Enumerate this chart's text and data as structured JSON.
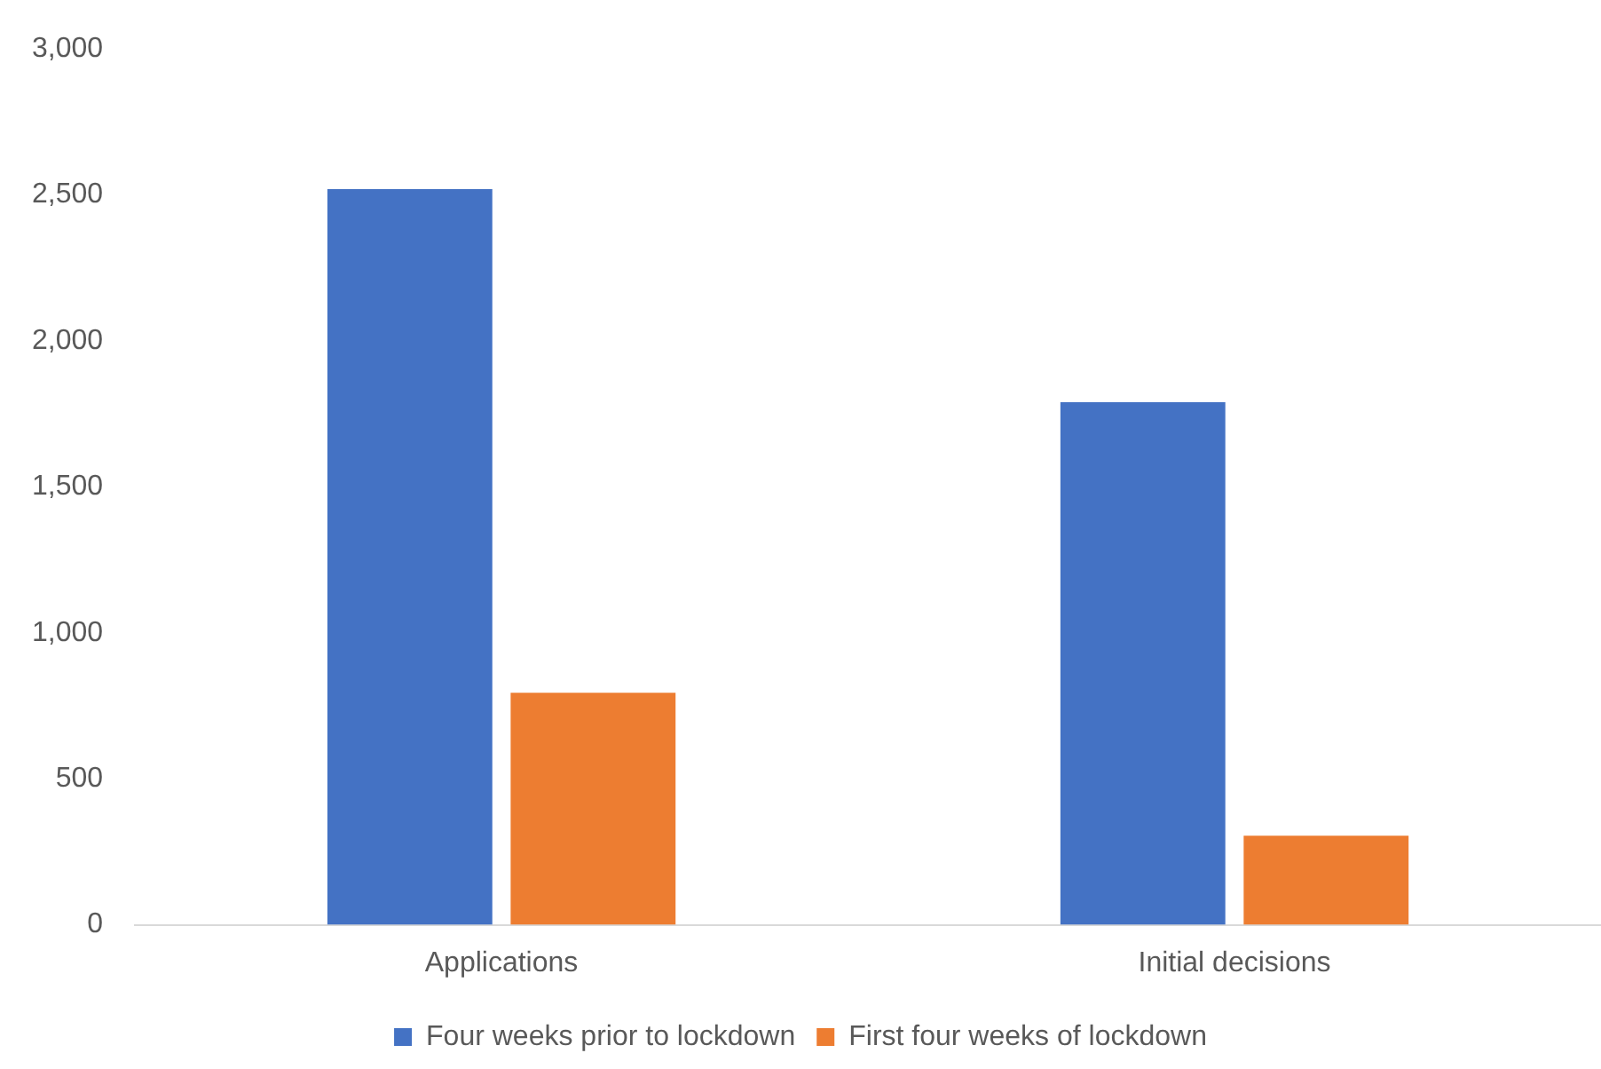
{
  "chart_data": {
    "type": "bar",
    "categories": [
      "Applications",
      "Initial decisions"
    ],
    "series": [
      {
        "name": "Four weeks prior to lockdown",
        "color": "#4472c4",
        "values": [
          2520,
          1790
        ]
      },
      {
        "name": "First four weeks of lockdown",
        "color": "#ed7d31",
        "values": [
          795,
          305
        ]
      }
    ],
    "ylim": [
      0,
      3000
    ],
    "yticks": [
      0,
      500,
      {
        "value": 1000,
        "label": "1,000"
      },
      {
        "value": 1500,
        "label": "1,500"
      },
      {
        "value": 2000,
        "label": "2,000"
      },
      {
        "value": 2500,
        "label": "2,500"
      },
      {
        "value": 3000,
        "label": "3,000"
      }
    ],
    "grid": false,
    "legend": "bottom"
  }
}
